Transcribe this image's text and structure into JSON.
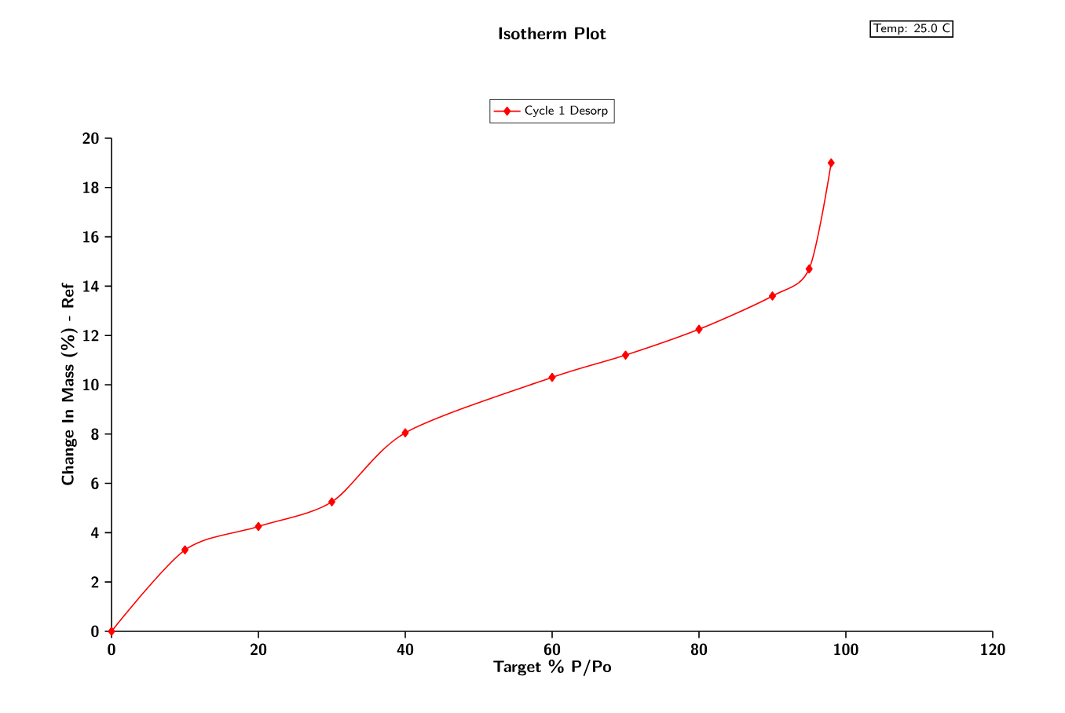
{
  "chart_data": {
    "type": "line",
    "title": "Isotherm Plot",
    "xlabel": "Target % P/Po",
    "ylabel": "Change In Mass (%) - Ref",
    "annotations": [
      "Temp: 25.0  C"
    ],
    "x": [
      0,
      10,
      20,
      30,
      40,
      60,
      70,
      80,
      90,
      95,
      98
    ],
    "series": [
      {
        "name": "Cycle 1 Desorp",
        "color": "#ff0000",
        "values": [
          0,
          3.3,
          4.25,
          5.25,
          8.05,
          10.3,
          11.2,
          12.25,
          13.6,
          14.7,
          19.0
        ]
      }
    ],
    "xlim": [
      0,
      120
    ],
    "xticks": [
      0,
      20,
      40,
      60,
      80,
      100,
      120
    ],
    "ylim": [
      0,
      20
    ],
    "yticks": [
      0,
      2,
      4,
      6,
      8,
      10,
      12,
      14,
      16,
      18,
      20
    ],
    "grid": false,
    "legend": "top",
    "marker": "diamond",
    "line_style": "solid"
  }
}
